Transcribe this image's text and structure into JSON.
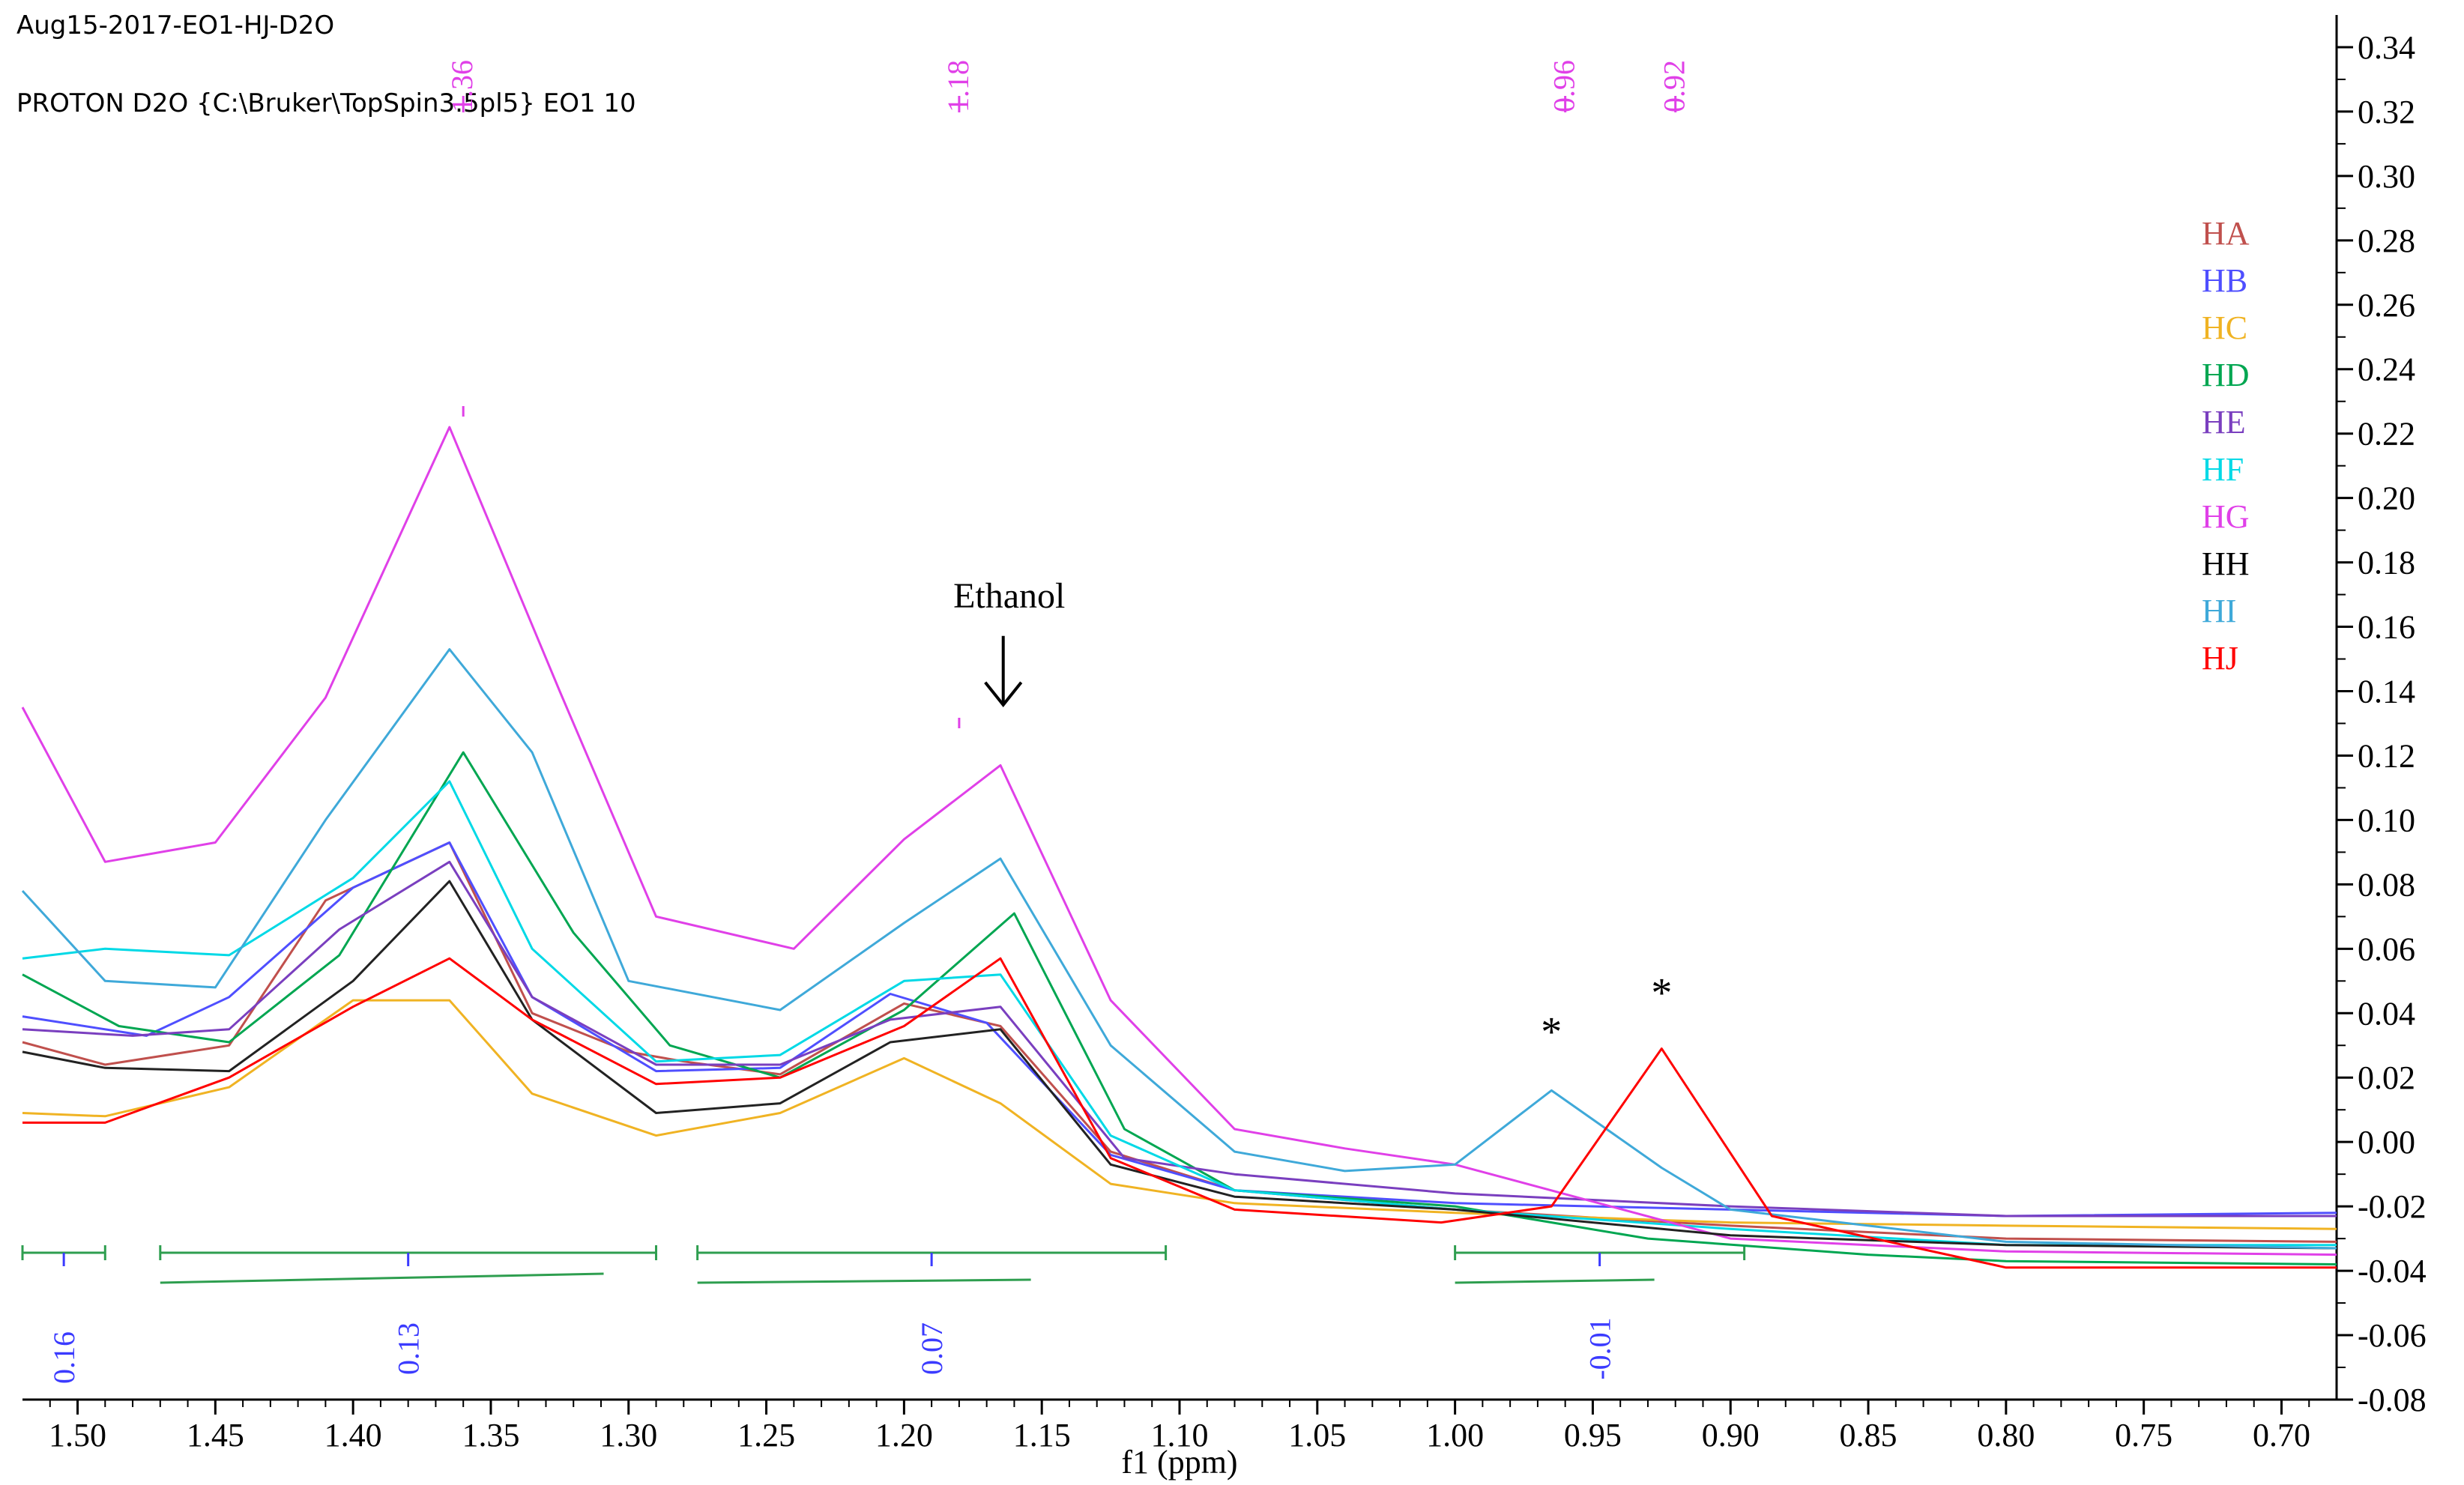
{
  "header": {
    "line1": "Aug15-2017-EO1-HJ-D2O",
    "line2": "PROTON D2O {C:\\Bruker\\TopSpin3.5pl5} EO1 10"
  },
  "chart_data": {
    "type": "line",
    "title": "",
    "xlabel": "f1 (ppm)",
    "ylabel": "",
    "xlim": [
      1.52,
      0.68
    ],
    "ylim": [
      -0.08,
      0.35
    ],
    "x_ticks": [
      1.5,
      1.45,
      1.4,
      1.35,
      1.3,
      1.25,
      1.2,
      1.15,
      1.1,
      1.05,
      1.0,
      0.95,
      0.9,
      0.85,
      0.8,
      0.75,
      0.7
    ],
    "x_tick_labels": [
      "1.50",
      "1.45",
      "1.40",
      "1.35",
      "1.30",
      "1.25",
      "1.20",
      "1.15",
      "1.10",
      "1.05",
      "1.00",
      "0.95",
      "0.90",
      "0.85",
      "0.80",
      "0.75",
      "0.70"
    ],
    "y_ticks": [
      0.34,
      0.32,
      0.3,
      0.28,
      0.26,
      0.24,
      0.22,
      0.2,
      0.18,
      0.16,
      0.14,
      0.12,
      0.1,
      0.08,
      0.06,
      0.04,
      0.02,
      0.0,
      -0.02,
      -0.04,
      -0.06,
      -0.08
    ],
    "y_tick_labels": [
      "0.34",
      "0.32",
      "0.30",
      "0.28",
      "0.26",
      "0.24",
      "0.22",
      "0.20",
      "0.18",
      "0.16",
      "0.14",
      "0.12",
      "0.10",
      "0.08",
      "0.06",
      "0.04",
      "0.02",
      "0.00",
      "-0.02",
      "-0.04",
      "-0.06",
      "-0.08"
    ],
    "legend": {
      "position": "top-right",
      "entries": [
        {
          "name": "HA",
          "color": "#c0504d"
        },
        {
          "name": "HB",
          "color": "#4f4fff"
        },
        {
          "name": "HC",
          "color": "#f0b323"
        },
        {
          "name": "HD",
          "color": "#00a651"
        },
        {
          "name": "HE",
          "color": "#7a3fbf"
        },
        {
          "name": "HF",
          "color": "#00d9e6"
        },
        {
          "name": "HG",
          "color": "#e040e8"
        },
        {
          "name": "HH",
          "color": "#000000"
        },
        {
          "name": "HI",
          "color": "#3fa9d9"
        },
        {
          "name": "HJ",
          "color": "#ff0000"
        }
      ]
    },
    "series": [
      {
        "name": "HA",
        "color": "#c0504d",
        "points": [
          [
            1.52,
            0.031
          ],
          [
            1.49,
            0.024
          ],
          [
            1.445,
            0.03
          ],
          [
            1.41,
            0.075
          ],
          [
            1.365,
            0.093
          ],
          [
            1.335,
            0.04
          ],
          [
            1.3,
            0.028
          ],
          [
            1.28,
            0.025
          ],
          [
            1.245,
            0.021
          ],
          [
            1.2,
            0.043
          ],
          [
            1.165,
            0.036
          ],
          [
            1.125,
            -0.003
          ],
          [
            1.08,
            -0.015
          ],
          [
            1.0,
            -0.021
          ],
          [
            0.9,
            -0.026
          ],
          [
            0.8,
            -0.03
          ],
          [
            0.68,
            -0.031
          ]
        ]
      },
      {
        "name": "HB",
        "color": "#4f4fff",
        "points": [
          [
            1.52,
            0.039
          ],
          [
            1.475,
            0.033
          ],
          [
            1.445,
            0.045
          ],
          [
            1.4,
            0.079
          ],
          [
            1.365,
            0.093
          ],
          [
            1.335,
            0.045
          ],
          [
            1.29,
            0.022
          ],
          [
            1.245,
            0.023
          ],
          [
            1.205,
            0.046
          ],
          [
            1.17,
            0.037
          ],
          [
            1.125,
            -0.004
          ],
          [
            1.08,
            -0.015
          ],
          [
            1.0,
            -0.019
          ],
          [
            0.9,
            -0.021
          ],
          [
            0.8,
            -0.023
          ],
          [
            0.68,
            -0.022
          ]
        ]
      },
      {
        "name": "HC",
        "color": "#f0b323",
        "points": [
          [
            1.52,
            0.009
          ],
          [
            1.49,
            0.008
          ],
          [
            1.445,
            0.017
          ],
          [
            1.4,
            0.044
          ],
          [
            1.365,
            0.044
          ],
          [
            1.335,
            0.015
          ],
          [
            1.29,
            0.002
          ],
          [
            1.245,
            0.009
          ],
          [
            1.2,
            0.026
          ],
          [
            1.165,
            0.012
          ],
          [
            1.125,
            -0.013
          ],
          [
            1.08,
            -0.019
          ],
          [
            1.0,
            -0.022
          ],
          [
            0.9,
            -0.025
          ],
          [
            0.8,
            -0.026
          ],
          [
            0.68,
            -0.027
          ]
        ]
      },
      {
        "name": "HD",
        "color": "#00a651",
        "points": [
          [
            1.52,
            0.052
          ],
          [
            1.485,
            0.036
          ],
          [
            1.445,
            0.031
          ],
          [
            1.405,
            0.058
          ],
          [
            1.36,
            0.121
          ],
          [
            1.32,
            0.065
          ],
          [
            1.285,
            0.03
          ],
          [
            1.245,
            0.02
          ],
          [
            1.2,
            0.041
          ],
          [
            1.16,
            0.071
          ],
          [
            1.12,
            0.004
          ],
          [
            1.08,
            -0.015
          ],
          [
            1.0,
            -0.02
          ],
          [
            0.93,
            -0.03
          ],
          [
            0.85,
            -0.035
          ],
          [
            0.8,
            -0.037
          ],
          [
            0.68,
            -0.038
          ]
        ]
      },
      {
        "name": "HE",
        "color": "#7a3fbf",
        "points": [
          [
            1.52,
            0.035
          ],
          [
            1.48,
            0.033
          ],
          [
            1.445,
            0.035
          ],
          [
            1.405,
            0.066
          ],
          [
            1.365,
            0.087
          ],
          [
            1.335,
            0.045
          ],
          [
            1.29,
            0.024
          ],
          [
            1.245,
            0.024
          ],
          [
            1.205,
            0.038
          ],
          [
            1.165,
            0.042
          ],
          [
            1.12,
            -0.005
          ],
          [
            1.08,
            -0.01
          ],
          [
            1.0,
            -0.016
          ],
          [
            0.9,
            -0.02
          ],
          [
            0.8,
            -0.023
          ],
          [
            0.68,
            -0.023
          ]
        ]
      },
      {
        "name": "HF",
        "color": "#00d9e6",
        "points": [
          [
            1.52,
            0.057
          ],
          [
            1.49,
            0.06
          ],
          [
            1.445,
            0.058
          ],
          [
            1.4,
            0.082
          ],
          [
            1.365,
            0.112
          ],
          [
            1.335,
            0.06
          ],
          [
            1.29,
            0.025
          ],
          [
            1.245,
            0.027
          ],
          [
            1.2,
            0.05
          ],
          [
            1.165,
            0.052
          ],
          [
            1.125,
            0.002
          ],
          [
            1.08,
            -0.015
          ],
          [
            1.0,
            -0.021
          ],
          [
            0.9,
            -0.027
          ],
          [
            0.8,
            -0.032
          ],
          [
            0.68,
            -0.032
          ]
        ]
      },
      {
        "name": "HG",
        "color": "#e040e8",
        "points": [
          [
            1.52,
            0.135
          ],
          [
            1.49,
            0.087
          ],
          [
            1.45,
            0.093
          ],
          [
            1.41,
            0.138
          ],
          [
            1.365,
            0.222
          ],
          [
            1.325,
            0.14
          ],
          [
            1.29,
            0.07
          ],
          [
            1.24,
            0.06
          ],
          [
            1.2,
            0.094
          ],
          [
            1.165,
            0.117
          ],
          [
            1.125,
            0.044
          ],
          [
            1.08,
            0.004
          ],
          [
            1.04,
            -0.002
          ],
          [
            1.0,
            -0.007
          ],
          [
            0.9,
            -0.03
          ],
          [
            0.8,
            -0.034
          ],
          [
            0.68,
            -0.035
          ]
        ]
      },
      {
        "name": "HH",
        "color": "#222222",
        "points": [
          [
            1.52,
            0.028
          ],
          [
            1.49,
            0.023
          ],
          [
            1.445,
            0.022
          ],
          [
            1.4,
            0.05
          ],
          [
            1.365,
            0.081
          ],
          [
            1.335,
            0.038
          ],
          [
            1.29,
            0.009
          ],
          [
            1.245,
            0.012
          ],
          [
            1.205,
            0.031
          ],
          [
            1.165,
            0.035
          ],
          [
            1.125,
            -0.007
          ],
          [
            1.08,
            -0.017
          ],
          [
            1.0,
            -0.021
          ],
          [
            0.9,
            -0.029
          ],
          [
            0.8,
            -0.032
          ],
          [
            0.68,
            -0.033
          ]
        ]
      },
      {
        "name": "HI",
        "color": "#3fa9d9",
        "points": [
          [
            1.52,
            0.078
          ],
          [
            1.49,
            0.05
          ],
          [
            1.45,
            0.048
          ],
          [
            1.41,
            0.1
          ],
          [
            1.365,
            0.153
          ],
          [
            1.335,
            0.121
          ],
          [
            1.3,
            0.05
          ],
          [
            1.245,
            0.041
          ],
          [
            1.2,
            0.068
          ],
          [
            1.165,
            0.088
          ],
          [
            1.125,
            0.03
          ],
          [
            1.08,
            -0.003
          ],
          [
            1.04,
            -0.009
          ],
          [
            1.0,
            -0.007
          ],
          [
            0.965,
            0.016
          ],
          [
            0.925,
            -0.008
          ],
          [
            0.9,
            -0.021
          ],
          [
            0.8,
            -0.031
          ],
          [
            0.68,
            -0.033
          ]
        ]
      },
      {
        "name": "HJ",
        "color": "#ff0000",
        "points": [
          [
            1.52,
            0.006
          ],
          [
            1.49,
            0.006
          ],
          [
            1.445,
            0.02
          ],
          [
            1.4,
            0.042
          ],
          [
            1.365,
            0.057
          ],
          [
            1.335,
            0.038
          ],
          [
            1.29,
            0.018
          ],
          [
            1.245,
            0.02
          ],
          [
            1.2,
            0.036
          ],
          [
            1.165,
            0.057
          ],
          [
            1.125,
            -0.005
          ],
          [
            1.08,
            -0.021
          ],
          [
            1.005,
            -0.025
          ],
          [
            0.965,
            -0.02
          ],
          [
            0.925,
            0.029
          ],
          [
            0.885,
            -0.023
          ],
          [
            0.8,
            -0.039
          ],
          [
            0.68,
            -0.039
          ]
        ]
      }
    ],
    "peak_labels": [
      {
        "ppm": 1.36,
        "text": "1.36"
      },
      {
        "ppm": 1.18,
        "text": "1.18"
      },
      {
        "ppm": 0.96,
        "text": "0.96"
      },
      {
        "ppm": 0.92,
        "text": "0.92"
      }
    ],
    "annotations": [
      {
        "text": "Ethanol",
        "ppm": 1.164,
        "value": 0.166,
        "arrow": true
      },
      {
        "text": "*",
        "ppm": 0.965,
        "value": 0.03
      },
      {
        "text": "*",
        "ppm": 0.925,
        "value": 0.042
      }
    ],
    "integrals": [
      {
        "from": 1.52,
        "to": 1.49,
        "label": "0.16"
      },
      {
        "from": 1.47,
        "to": 1.29,
        "label": "0.13"
      },
      {
        "from": 1.275,
        "to": 1.105,
        "label": "0.07"
      },
      {
        "from": 1.0,
        "to": 0.895,
        "label": "-0.01"
      }
    ]
  }
}
